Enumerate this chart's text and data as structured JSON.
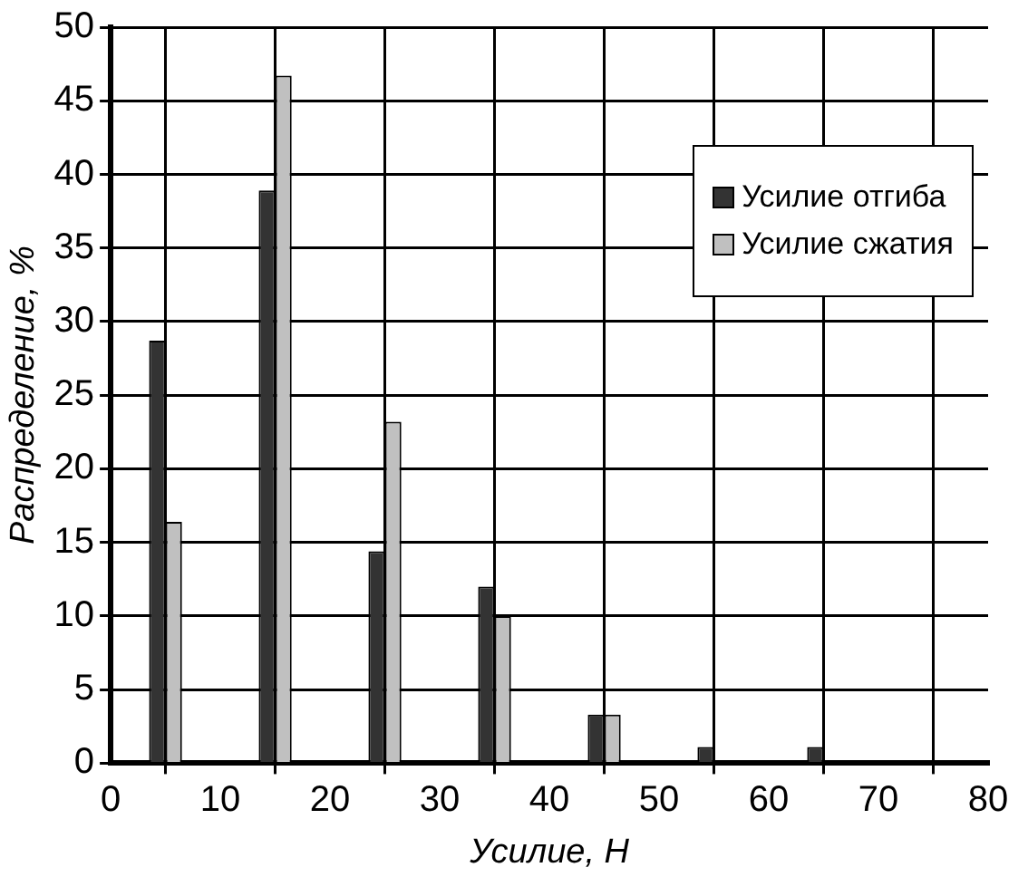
{
  "chart_data": {
    "type": "bar",
    "xlabel": "Усилие, Н",
    "ylabel": "Распределение, %",
    "x": [
      5,
      15,
      25,
      35,
      45,
      55,
      65
    ],
    "series": [
      {
        "name": "Усилие отгиба",
        "color": "#333333",
        "values": [
          28.7,
          38.9,
          14.4,
          12,
          3.3,
          1.1,
          1.1
        ]
      },
      {
        "name": "Усилие сжатия",
        "color": "#c0c0c0",
        "values": [
          16.4,
          46.7,
          23.2,
          10,
          3.3,
          null,
          null
        ]
      }
    ],
    "xlim": [
      0,
      80
    ],
    "xticks": [
      0,
      10,
      20,
      30,
      40,
      50,
      60,
      70,
      80
    ],
    "ylim": [
      0,
      50
    ],
    "yticks": [
      0,
      5,
      10,
      15,
      20,
      25,
      30,
      35,
      40,
      45,
      50
    ],
    "grid": true,
    "legend": "top right"
  }
}
